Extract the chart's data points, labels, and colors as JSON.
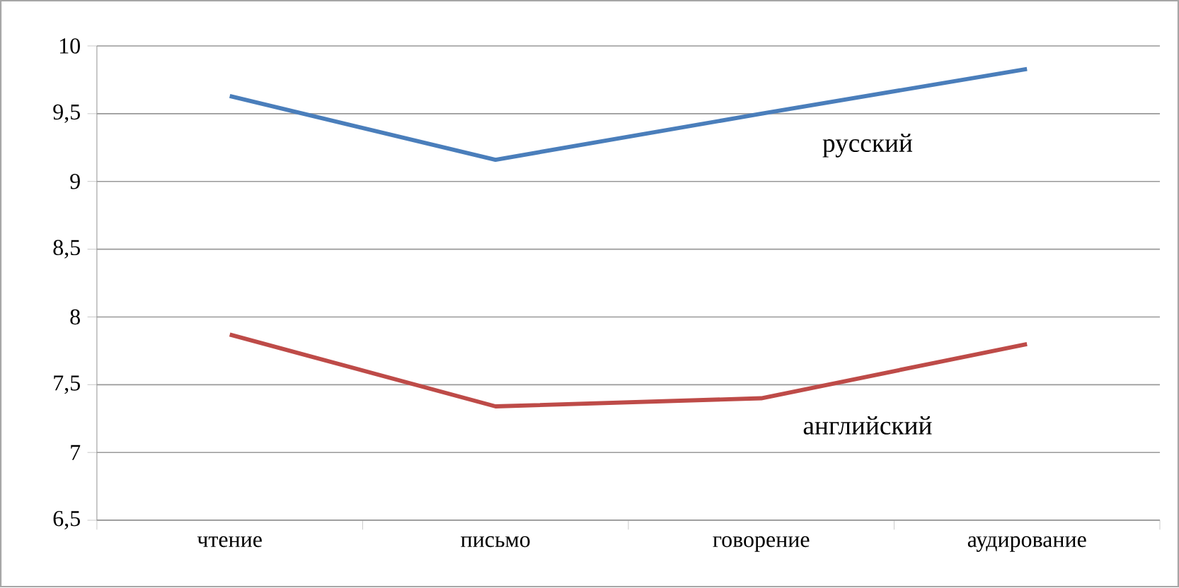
{
  "chart_data": {
    "type": "line",
    "categories": [
      "чтение",
      "письмо",
      "говорение",
      "аудирование"
    ],
    "series": [
      {
        "name": "русский",
        "color": "#4a7ebb",
        "values": [
          9.63,
          9.16,
          9.5,
          9.83
        ]
      },
      {
        "name": "английский",
        "color": "#be4b48",
        "values": [
          7.87,
          7.34,
          7.4,
          7.8
        ]
      }
    ],
    "ylim": [
      6.5,
      10
    ],
    "yticks": [
      {
        "value": 6.5,
        "label": "6,5"
      },
      7,
      {
        "value": 7.5,
        "label": "7,5"
      },
      8,
      {
        "value": 8.5,
        "label": "8,5"
      },
      9,
      {
        "value": 9.5,
        "label": "9,5"
      },
      10
    ],
    "grid": "y",
    "legend": false,
    "marker": "none",
    "line_style": "solid"
  }
}
